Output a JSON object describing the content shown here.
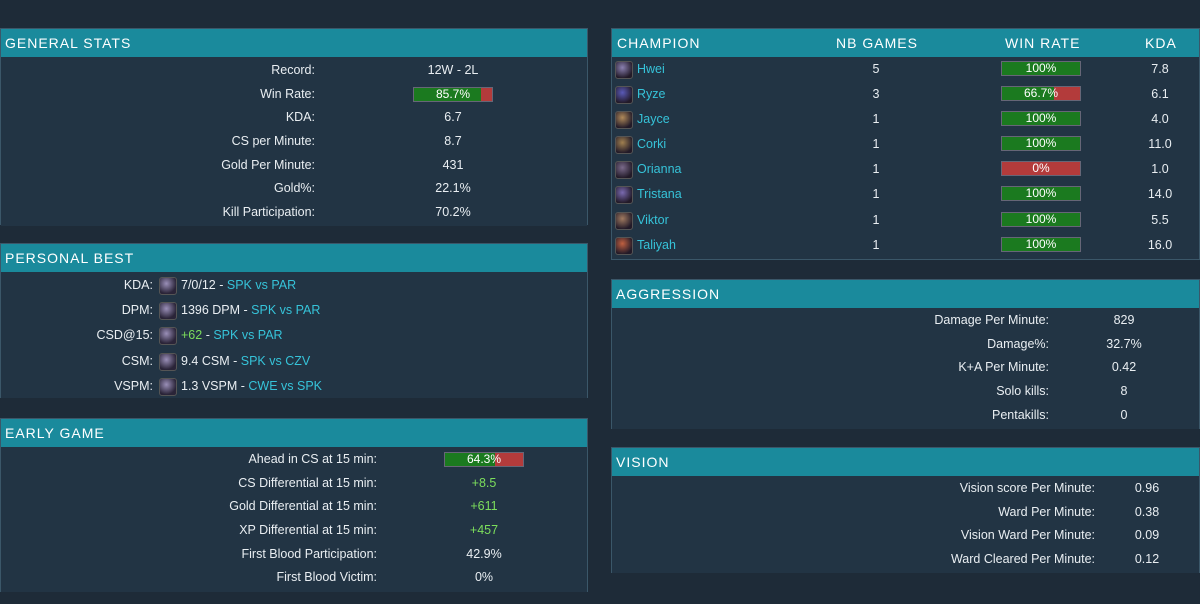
{
  "general": {
    "title": "GENERAL STATS",
    "rows": [
      {
        "label": "Record:",
        "value": "12W - 2L"
      },
      {
        "label": "Win Rate:",
        "value": "85.7%",
        "bar": 0.857
      },
      {
        "label": "KDA:",
        "value": "6.7"
      },
      {
        "label": "CS per Minute:",
        "value": "8.7"
      },
      {
        "label": "Gold Per Minute:",
        "value": "431"
      },
      {
        "label": "Gold%:",
        "value": "22.1%"
      },
      {
        "label": "Kill Participation:",
        "value": "70.2%"
      }
    ]
  },
  "personal_best": {
    "title": "PERSONAL BEST",
    "rows": [
      {
        "label": "KDA:",
        "stat": "7/0/12",
        "sep": " - ",
        "match": "SPK vs PAR",
        "stat_green": false
      },
      {
        "label": "DPM:",
        "stat": "1396 DPM",
        "sep": " - ",
        "match": "SPK vs PAR",
        "stat_green": false
      },
      {
        "label": "CSD@15:",
        "stat": "+62",
        "sep": " - ",
        "match": "SPK vs PAR",
        "stat_green": true
      },
      {
        "label": "CSM:",
        "stat": "9.4 CSM",
        "sep": " - ",
        "match": "SPK vs CZV",
        "stat_green": false
      },
      {
        "label": "VSPM:",
        "stat": "1.3 VSPM",
        "sep": " - ",
        "match": "CWE vs SPK",
        "stat_green": false
      }
    ]
  },
  "early_game": {
    "title": "EARLY GAME",
    "rows": [
      {
        "label": "Ahead in CS at 15 min:",
        "value": "64.3%",
        "bar": 0.643
      },
      {
        "label": "CS Differential at 15 min:",
        "value": "+8.5",
        "green": true
      },
      {
        "label": "Gold Differential at 15 min:",
        "value": "+611",
        "green": true
      },
      {
        "label": "XP Differential at 15 min:",
        "value": "+457",
        "green": true
      },
      {
        "label": "First Blood Participation:",
        "value": "42.9%"
      },
      {
        "label": "First Blood Victim:",
        "value": "0%"
      }
    ]
  },
  "champions": {
    "headers": {
      "champion": "CHAMPION",
      "games": "NB GAMES",
      "winrate": "WIN RATE",
      "kda": "KDA"
    },
    "rows": [
      {
        "name": "Hwei",
        "games": "5",
        "winrate": "100%",
        "wr": 1.0,
        "kda": "7.8"
      },
      {
        "name": "Ryze",
        "games": "3",
        "winrate": "66.7%",
        "wr": 0.667,
        "kda": "6.1"
      },
      {
        "name": "Jayce",
        "games": "1",
        "winrate": "100%",
        "wr": 1.0,
        "kda": "4.0"
      },
      {
        "name": "Corki",
        "games": "1",
        "winrate": "100%",
        "wr": 1.0,
        "kda": "11.0"
      },
      {
        "name": "Orianna",
        "games": "1",
        "winrate": "0%",
        "wr": 0.0,
        "kda": "1.0"
      },
      {
        "name": "Tristana",
        "games": "1",
        "winrate": "100%",
        "wr": 1.0,
        "kda": "14.0"
      },
      {
        "name": "Viktor",
        "games": "1",
        "winrate": "100%",
        "wr": 1.0,
        "kda": "5.5"
      },
      {
        "name": "Taliyah",
        "games": "1",
        "winrate": "100%",
        "wr": 1.0,
        "kda": "16.0"
      }
    ]
  },
  "aggression": {
    "title": "AGGRESSION",
    "rows": [
      {
        "label": "Damage Per Minute:",
        "value": "829"
      },
      {
        "label": "Damage%:",
        "value": "32.7%"
      },
      {
        "label": "K+A Per Minute:",
        "value": "0.42"
      },
      {
        "label": "Solo kills:",
        "value": "8"
      },
      {
        "label": "Pentakills:",
        "value": "0"
      }
    ]
  },
  "vision": {
    "title": "VISION",
    "rows": [
      {
        "label": "Vision score Per Minute:",
        "value": "0.96"
      },
      {
        "label": "Ward Per Minute:",
        "value": "0.38"
      },
      {
        "label": "Vision Ward Per Minute:",
        "value": "0.09"
      },
      {
        "label": "Ward Cleared Per Minute:",
        "value": "0.12"
      }
    ]
  },
  "colors": {
    "header": "#1a8a9c",
    "win": "#1b7a1f",
    "loss": "#b33b3b",
    "link": "#36c3d9",
    "positive": "#7cde5c"
  }
}
